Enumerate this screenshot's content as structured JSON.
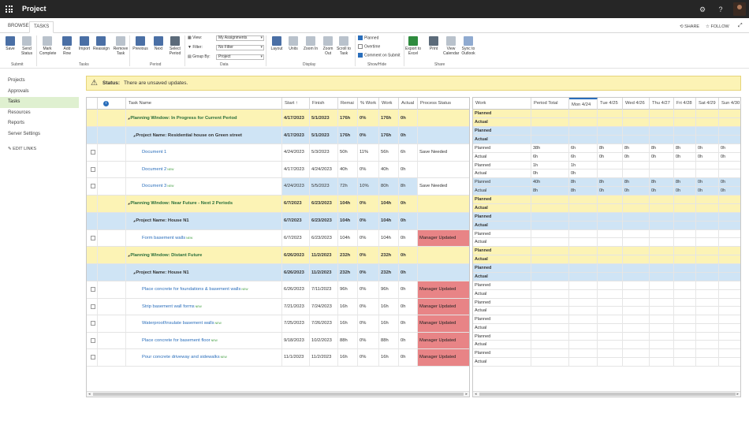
{
  "app": {
    "title": "Project"
  },
  "tabs": [
    "BROWSE",
    "TASKS"
  ],
  "top_actions": {
    "share": "SHARE",
    "follow": "FOLLOW"
  },
  "ribbon": {
    "buttons": [
      {
        "label": "Save",
        "icon": "save-icon"
      },
      {
        "label": "Send Status",
        "icon": "send-status-icon"
      },
      {
        "label": "Mark Complete",
        "icon": "mark-complete-icon"
      },
      {
        "label": "Add Row",
        "icon": "add-row-icon"
      },
      {
        "label": "Import",
        "icon": "import-icon"
      },
      {
        "label": "Reassign",
        "icon": "reassign-icon"
      },
      {
        "label": "Remove Task",
        "icon": "remove-task-icon"
      },
      {
        "label": "Previous",
        "icon": "previous-icon"
      },
      {
        "label": "Next",
        "icon": "next-icon"
      },
      {
        "label": "Select Period",
        "icon": "select-period-icon"
      },
      {
        "label": "Layout",
        "icon": "layout-icon"
      },
      {
        "label": "Units",
        "icon": "units-icon"
      },
      {
        "label": "Zoom In",
        "icon": "zoom-in-icon"
      },
      {
        "label": "Zoom Out",
        "icon": "zoom-out-icon"
      },
      {
        "label": "Scroll to Task",
        "icon": "scroll-to-task-icon"
      },
      {
        "label": "Export to Excel",
        "icon": "excel-icon"
      },
      {
        "label": "Print",
        "icon": "print-icon"
      },
      {
        "label": "View Calendar",
        "icon": "calendar-icon"
      },
      {
        "label": "Sync to Outlook",
        "icon": "outlook-icon"
      }
    ],
    "groups": [
      "Submit",
      "Tasks",
      "Period",
      "Data",
      "Display",
      "Show/Hide",
      "Share"
    ],
    "data": {
      "view": "View:",
      "filter": "Filter:",
      "group_by": "Group By:",
      "view_value": "My Assignments",
      "filter_value": "No Filter",
      "group_value": "Project"
    },
    "show_hide": [
      {
        "label": "Planned",
        "checked": true
      },
      {
        "label": "Overtime",
        "checked": false
      },
      {
        "label": "Comment on Submit",
        "checked": true
      }
    ]
  },
  "nav": {
    "items": [
      "Projects",
      "Approvals",
      "Tasks",
      "Resources",
      "Reports",
      "Server Settings"
    ],
    "selected": "Tasks",
    "edit_links": "EDIT LINKS"
  },
  "status": {
    "label": "Status:",
    "message": "There are unsaved updates."
  },
  "grid": {
    "columns": [
      "",
      "",
      "Task Name",
      "Start ↑",
      "Finish",
      "Remai",
      "% Work",
      "Work",
      "Actual",
      "Process Status"
    ],
    "rows": [
      {
        "type": "window",
        "name": "Planning Window: In Progress for Current Period",
        "start": "4/17/2023",
        "finish": "5/1/2023",
        "remain": "176h",
        "pct": "0%",
        "work": "176h",
        "actual": "0h",
        "status": ""
      },
      {
        "type": "project",
        "name": "Project Name: Residential house on Green street",
        "start": "4/17/2023",
        "finish": "5/1/2023",
        "remain": "176h",
        "pct": "0%",
        "work": "176h",
        "actual": "0h",
        "status": ""
      },
      {
        "type": "task",
        "name": "Document 1",
        "new": false,
        "start": "4/24/2023",
        "finish": "5/3/2023",
        "remain": "50h",
        "pct": "11%",
        "work": "56h",
        "actual": "6h",
        "status": "Save Needed"
      },
      {
        "type": "task",
        "name": "Document 2",
        "new": true,
        "start": "4/17/2023",
        "finish": "4/24/2023",
        "remain": "40h",
        "pct": "0%",
        "work": "40h",
        "actual": "0h",
        "status": ""
      },
      {
        "type": "task",
        "name": "Document 3",
        "new": true,
        "start": "4/24/2023",
        "finish": "5/5/2023",
        "remain": "72h",
        "pct": "10%",
        "work": "80h",
        "actual": "8h",
        "status": "Save Needed",
        "sel": true
      },
      {
        "type": "window",
        "name": "Planning Window: Near Future - Next 2 Periods",
        "start": "6/7/2023",
        "finish": "6/23/2023",
        "remain": "104h",
        "pct": "0%",
        "work": "104h",
        "actual": "0h",
        "status": ""
      },
      {
        "type": "project",
        "name": "Project Name: House N1",
        "start": "6/7/2023",
        "finish": "6/23/2023",
        "remain": "104h",
        "pct": "0%",
        "work": "104h",
        "actual": "0h",
        "status": ""
      },
      {
        "type": "task",
        "name": "Form basement walls",
        "new": true,
        "start": "6/7/2023",
        "finish": "6/23/2023",
        "remain": "104h",
        "pct": "0%",
        "work": "104h",
        "actual": "0h",
        "status": "Manager Updated"
      },
      {
        "type": "window",
        "name": "Planning Window: Distant Future",
        "start": "6/26/2023",
        "finish": "11/2/2023",
        "remain": "232h",
        "pct": "0%",
        "work": "232h",
        "actual": "0h",
        "status": ""
      },
      {
        "type": "project",
        "name": "Project Name: House N1",
        "start": "6/26/2023",
        "finish": "11/2/2023",
        "remain": "232h",
        "pct": "0%",
        "work": "232h",
        "actual": "0h",
        "status": ""
      },
      {
        "type": "task",
        "name": "Place concrete for foundations & basement walls",
        "new": true,
        "start": "6/26/2023",
        "finish": "7/11/2023",
        "remain": "96h",
        "pct": "0%",
        "work": "96h",
        "actual": "0h",
        "status": "Manager Updated"
      },
      {
        "type": "task",
        "name": "Strip basement wall forms",
        "new": true,
        "start": "7/21/2023",
        "finish": "7/24/2023",
        "remain": "16h",
        "pct": "0%",
        "work": "16h",
        "actual": "0h",
        "status": "Manager Updated"
      },
      {
        "type": "task",
        "name": "Waterproof/insulate basement walls",
        "new": true,
        "start": "7/25/2023",
        "finish": "7/26/2023",
        "remain": "16h",
        "pct": "0%",
        "work": "16h",
        "actual": "0h",
        "status": "Manager Updated"
      },
      {
        "type": "task",
        "name": "Place concrete for basement floor",
        "new": true,
        "start": "9/18/2023",
        "finish": "10/2/2023",
        "remain": "88h",
        "pct": "0%",
        "work": "88h",
        "actual": "0h",
        "status": "Manager Updated"
      },
      {
        "type": "task",
        "name": "Pour concrete driveway and sidewalks",
        "new": true,
        "start": "11/1/2023",
        "finish": "11/2/2023",
        "remain": "16h",
        "pct": "0%",
        "work": "16h",
        "actual": "0h",
        "status": "Manager Updated"
      }
    ],
    "new_badge": "NEW"
  },
  "timesheet": {
    "columns": [
      "Work",
      "Period Total",
      "Mon 4/24",
      "Tue 4/25",
      "Wed 4/26",
      "Thu 4/27",
      "Fri 4/28",
      "Sat 4/29",
      "Sun 4/30"
    ],
    "today_col": 2,
    "row_values": [
      {
        "p": [],
        "a": []
      },
      {
        "p": [],
        "a": []
      },
      {
        "p": [
          "38h",
          "6h",
          "8h",
          "8h",
          "8h",
          "8h",
          "0h",
          "0h"
        ],
        "a": [
          "6h",
          "6h",
          "0h",
          "0h",
          "0h",
          "0h",
          "0h",
          "0h"
        ]
      },
      {
        "p": [
          "1h",
          "1h",
          "",
          "",
          "",
          "",
          "",
          ""
        ],
        "a": [
          "0h",
          "0h",
          "",
          "",
          "",
          "",
          "",
          ""
        ]
      },
      {
        "p": [
          "40h",
          "8h",
          "8h",
          "8h",
          "8h",
          "8h",
          "0h",
          "0h"
        ],
        "a": [
          "8h",
          "8h",
          "0h",
          "0h",
          "0h",
          "0h",
          "0h",
          "0h"
        ]
      },
      {
        "p": [],
        "a": []
      },
      {
        "p": [],
        "a": []
      },
      {
        "p": [],
        "a": []
      },
      {
        "p": [],
        "a": []
      },
      {
        "p": [],
        "a": []
      },
      {
        "p": [],
        "a": []
      },
      {
        "p": [],
        "a": []
      },
      {
        "p": [],
        "a": []
      },
      {
        "p": [],
        "a": []
      },
      {
        "p": [],
        "a": []
      }
    ],
    "planned": "Planned",
    "actual": "Actual"
  }
}
